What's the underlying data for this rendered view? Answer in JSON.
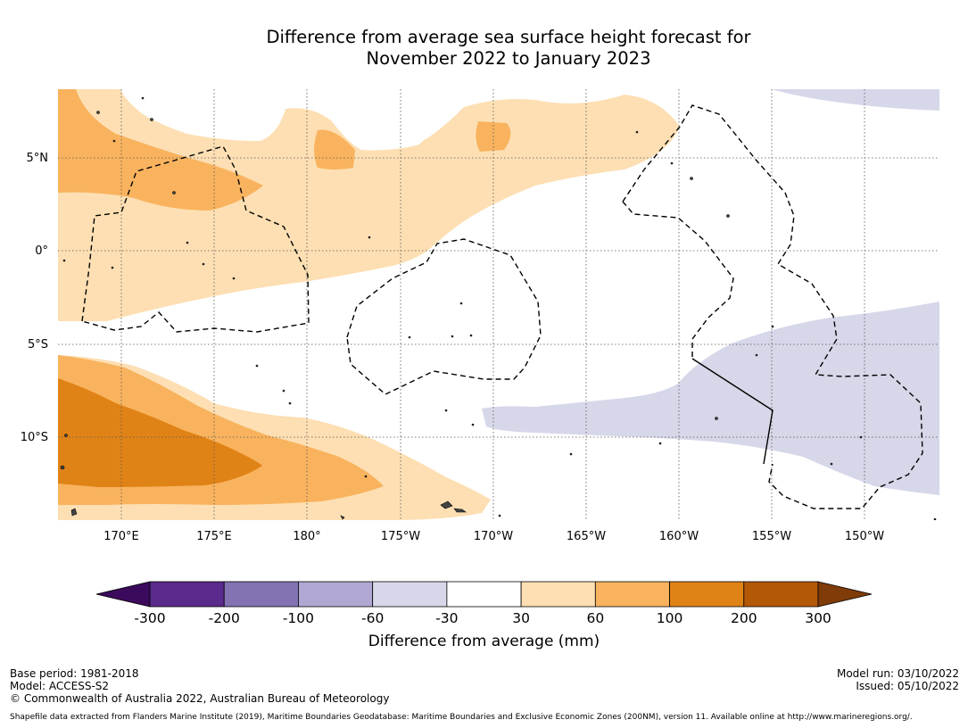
{
  "title": {
    "line1": "Difference from average sea surface height forecast for",
    "line2": "November 2022 to January 2023"
  },
  "map": {
    "lat_labels": [
      "5°N",
      "0°",
      "5°S",
      "10°S"
    ],
    "lon_labels": [
      "170°E",
      "175°E",
      "180°",
      "175°W",
      "170°W",
      "165°W",
      "160°W",
      "155°W",
      "150°W"
    ]
  },
  "colorbar": {
    "ticks": [
      "-300",
      "-200",
      "-100",
      "-60",
      "-30",
      "30",
      "60",
      "100",
      "200",
      "300"
    ],
    "colors": [
      "#3c0a5c",
      "#5a2a8c",
      "#8373b3",
      "#b0a8d2",
      "#d7d7ea",
      "#ffffff",
      "#fddfb3",
      "#f9b35e",
      "#e08316",
      "#b35807",
      "#7f3b08"
    ],
    "label": "Difference from average (mm)"
  },
  "footer": {
    "base_period": "Base period: 1981-2018",
    "model": "Model: ACCESS-S2",
    "copyright": "© Commonwealth of Australia 2022, Australian Bureau of Meteorology",
    "model_run": "Model run: 03/10/2022",
    "issued": "Issued: 05/10/2022",
    "shapefile_note": "Shapefile data extracted from Flanders Marine Institute (2019), Maritime Boundaries Geodatabase: Maritime Boundaries and Exclusive Economic Zones (200NM), version 11. Available online at http://www.marineregions.org/."
  }
}
